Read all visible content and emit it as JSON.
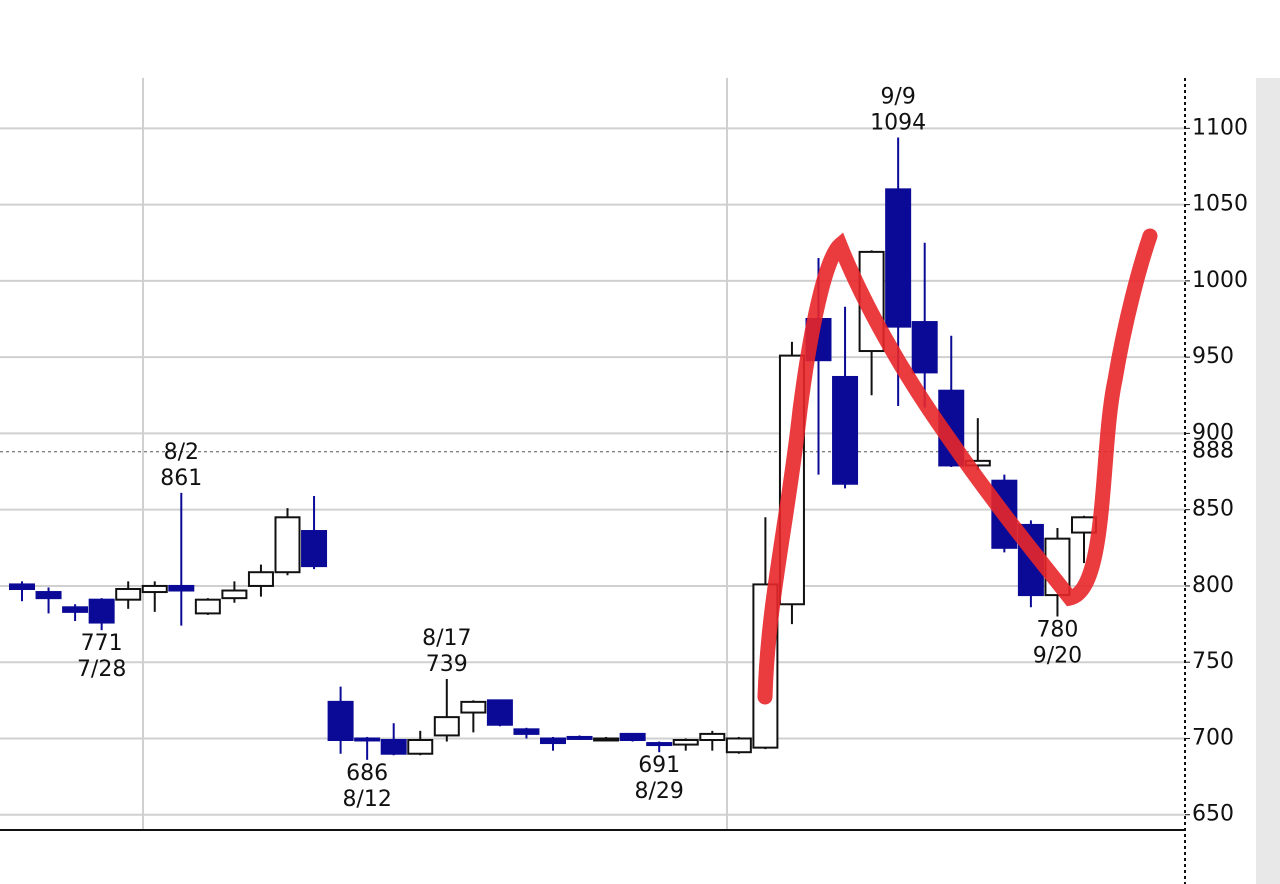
{
  "chart_data": {
    "type": "candlestick",
    "categories": [
      null,
      null,
      null,
      null,
      null,
      null,
      null,
      null,
      null,
      null,
      null,
      null,
      null,
      null,
      null,
      null,
      null,
      null,
      null,
      null,
      null,
      null,
      null,
      null,
      null,
      null,
      null,
      null,
      null,
      null,
      null,
      null,
      null,
      null,
      null,
      null,
      null,
      null,
      null,
      null,
      null
    ],
    "open": [
      801,
      796,
      786,
      791,
      791,
      796,
      800,
      782,
      792,
      800,
      809,
      836,
      724,
      700,
      699,
      690,
      702,
      717,
      725,
      706,
      700,
      701,
      700,
      703,
      697,
      696,
      699,
      691,
      694,
      788,
      975,
      937,
      954,
      1060,
      973,
      928,
      879,
      869,
      840,
      794,
      835
    ],
    "high": [
      803,
      799,
      788,
      792,
      803,
      803,
      861,
      792,
      803,
      814,
      851,
      859,
      734,
      701,
      710,
      705,
      739,
      725,
      725,
      707,
      701,
      702,
      701,
      703,
      698,
      700,
      705,
      701,
      845,
      960,
      1015,
      983,
      1020,
      1094,
      1025,
      964,
      910,
      873,
      843,
      838,
      846
    ],
    "low": [
      790,
      782,
      777,
      771,
      785,
      783,
      774,
      781,
      789,
      793,
      807,
      811,
      690,
      686,
      689,
      689,
      698,
      704,
      708,
      700,
      692,
      699,
      699,
      698,
      691,
      692,
      692,
      690,
      693,
      775,
      873,
      864,
      925,
      918,
      917,
      878,
      876,
      822,
      786,
      780,
      815
    ],
    "close": [
      798,
      792,
      783,
      776,
      798,
      800,
      797,
      791,
      797,
      809,
      845,
      813,
      699,
      699,
      690,
      699,
      714,
      724,
      709,
      703,
      697,
      700,
      700,
      699,
      696,
      699,
      703,
      700,
      801,
      951,
      948,
      867,
      1019,
      970,
      940,
      879,
      882,
      825,
      794,
      831,
      845
    ],
    "up_color": "#ffffff",
    "down_color": "#0a0a96",
    "ylim": [
      640,
      1133
    ],
    "yticks": [
      650,
      700,
      750,
      800,
      850,
      900,
      950,
      1000,
      1050,
      1100
    ],
    "grid": true,
    "reference_line": {
      "value": 888,
      "color": "#e8661e"
    },
    "annotations": [
      {
        "date": "7/28",
        "value": 771
      },
      {
        "date": "8/2",
        "value": 861
      },
      {
        "date": "8/12",
        "value": 686
      },
      {
        "date": "8/17",
        "value": 739
      },
      {
        "date": "8/29",
        "value": 691
      },
      {
        "date": "9/9",
        "value": 1094
      },
      {
        "date": "9/20",
        "value": 780
      }
    ]
  }
}
